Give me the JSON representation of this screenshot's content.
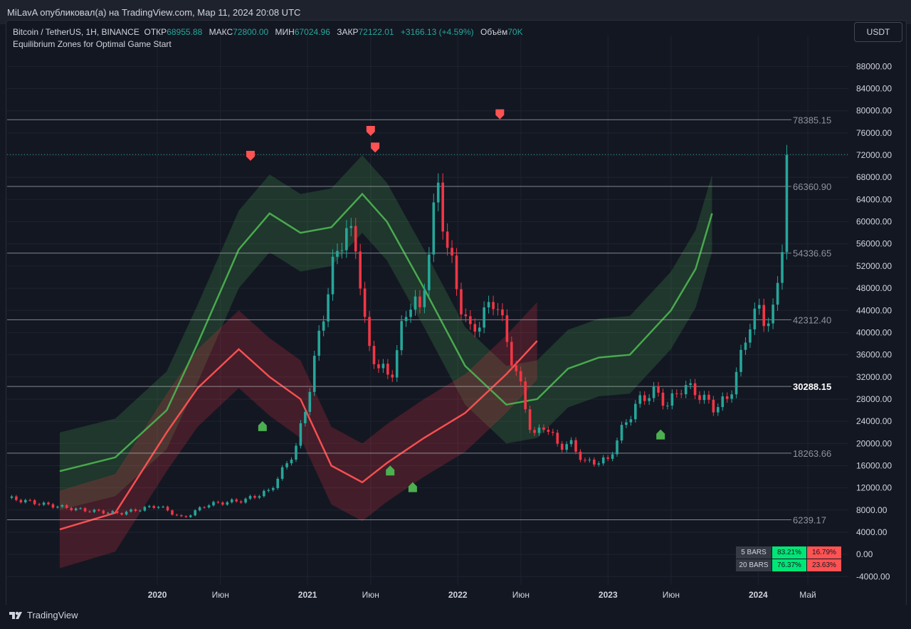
{
  "header": {
    "byline": "MiLavA опубликовал(а) на TradingView.com, Мар 11, 2024 20:08 UTC",
    "symbol": "Bitcoin / TetherUS, 1H, BINANCE",
    "open_label": "ОТКР",
    "open_value": "68955.88",
    "high_label": "МАКС",
    "high_value": "72800.00",
    "low_label": "МИН",
    "low_value": "67024.96",
    "close_label": "ЗАКР",
    "close_value": "72122.01",
    "change": "+3166.13 (+4.59%)",
    "volume_label": "Объём",
    "volume_value": "70K",
    "indicator": "Equilibrium Zones for Optimal Game Start"
  },
  "currency_button": "USDT",
  "footer": {
    "logo_text": "TradingView"
  },
  "stats": [
    {
      "label": "5 BARS",
      "up": "83.21%",
      "down": "16.79%"
    },
    {
      "label": "20 BARS",
      "up": "76.37%",
      "down": "23.63%"
    }
  ],
  "colors": {
    "bg": "#131722",
    "up": "#26a69a",
    "down": "#f23645",
    "green_line": "#4caf50",
    "red_line": "#ff5252",
    "grid": "#1f2330"
  },
  "chart_data": {
    "type": "candlestick",
    "title": "Bitcoin / TetherUS, 1H, BINANCE",
    "x_tick_labels": [
      "2020",
      "Июн",
      "2021",
      "Июн",
      "2022",
      "Июн",
      "2023",
      "Июн",
      "2024",
      "Май"
    ],
    "y_tick_labels": [
      "88000.00",
      "84000.00",
      "80000.00",
      "76000.00",
      "72000.00",
      "68000.00",
      "64000.00",
      "60000.00",
      "56000.00",
      "52000.00",
      "48000.00",
      "44000.00",
      "40000.00",
      "36000.00",
      "32000.00",
      "28000.00",
      "24000.00",
      "20000.00",
      "16000.00",
      "12000.00",
      "8000.00",
      "4000.00",
      "0.00",
      "-4000.00"
    ],
    "ylim": [
      -5500,
      91000
    ],
    "xlim": [
      2019.0,
      2024.6
    ],
    "horizontal_levels": [
      {
        "value": 78385.15,
        "label": "78385.15"
      },
      {
        "value": 66360.9,
        "label": "66360.90"
      },
      {
        "value": 54336.65,
        "label": "54336.65"
      },
      {
        "value": 42312.4,
        "label": "42312.40"
      },
      {
        "value": 30288.15,
        "label": "30288.15"
      },
      {
        "value": 18263.66,
        "label": "18263.66"
      },
      {
        "value": 6239.17,
        "label": "6239.17"
      }
    ],
    "current_price": 72122.01,
    "price_path": [
      [
        2019.0,
        10200
      ],
      [
        2019.25,
        9000
      ],
      [
        2019.5,
        8000
      ],
      [
        2019.75,
        7400
      ],
      [
        2020.0,
        8800
      ],
      [
        2020.17,
        6500
      ],
      [
        2020.33,
        9000
      ],
      [
        2020.58,
        9800
      ],
      [
        2020.75,
        11500
      ],
      [
        2020.92,
        19000
      ],
      [
        2021.0,
        28000
      ],
      [
        2021.08,
        40000
      ],
      [
        2021.17,
        52000
      ],
      [
        2021.25,
        59000
      ],
      [
        2021.33,
        55000
      ],
      [
        2021.4,
        37000
      ],
      [
        2021.48,
        34000
      ],
      [
        2021.55,
        31500
      ],
      [
        2021.63,
        41000
      ],
      [
        2021.7,
        47000
      ],
      [
        2021.75,
        43000
      ],
      [
        2021.83,
        60000
      ],
      [
        2021.87,
        66000
      ],
      [
        2021.92,
        57000
      ],
      [
        2022.0,
        47000
      ],
      [
        2022.08,
        40000
      ],
      [
        2022.17,
        43000
      ],
      [
        2022.25,
        46500
      ],
      [
        2022.33,
        38000
      ],
      [
        2022.42,
        30000
      ],
      [
        2022.5,
        21000
      ],
      [
        2022.58,
        23500
      ],
      [
        2022.67,
        19500
      ],
      [
        2022.75,
        20000
      ],
      [
        2022.85,
        16500
      ],
      [
        2023.0,
        17000
      ],
      [
        2023.1,
        23000
      ],
      [
        2023.2,
        27500
      ],
      [
        2023.3,
        29500
      ],
      [
        2023.4,
        27000
      ],
      [
        2023.5,
        30500
      ],
      [
        2023.6,
        29000
      ],
      [
        2023.7,
        26500
      ],
      [
        2023.8,
        28000
      ],
      [
        2023.88,
        35000
      ],
      [
        2023.95,
        42500
      ],
      [
        2024.0,
        44000
      ],
      [
        2024.05,
        42000
      ],
      [
        2024.1,
        43500
      ],
      [
        2024.15,
        52000
      ],
      [
        2024.19,
        72122
      ]
    ],
    "equilibrium_upper": [
      [
        2019.33,
        15000
      ],
      [
        2019.6,
        17500
      ],
      [
        2019.85,
        26000
      ],
      [
        2020.0,
        38000
      ],
      [
        2020.2,
        55000
      ],
      [
        2020.35,
        61500
      ],
      [
        2020.5,
        58000
      ],
      [
        2020.65,
        59000
      ],
      [
        2020.8,
        65000
      ],
      [
        2020.92,
        60000
      ],
      [
        2021.1,
        48000
      ],
      [
        2021.3,
        34000
      ],
      [
        2021.5,
        27000
      ],
      [
        2021.65,
        28000
      ],
      [
        2021.8,
        33500
      ],
      [
        2021.95,
        35500
      ],
      [
        2022.1,
        36000
      ],
      [
        2022.3,
        44000
      ],
      [
        2022.42,
        51500
      ],
      [
        2022.5,
        61500
      ]
    ],
    "equilibrium_lower": [
      [
        2019.33,
        4500
      ],
      [
        2019.6,
        7500
      ],
      [
        2019.85,
        22000
      ],
      [
        2020.0,
        30000
      ],
      [
        2020.2,
        37000
      ],
      [
        2020.35,
        32000
      ],
      [
        2020.5,
        28000
      ],
      [
        2020.65,
        16000
      ],
      [
        2020.8,
        13000
      ],
      [
        2020.92,
        16500
      ],
      [
        2021.1,
        21000
      ],
      [
        2021.3,
        25500
      ],
      [
        2021.5,
        32500
      ],
      [
        2021.65,
        38500
      ]
    ],
    "signals": {
      "sell": [
        [
          2020.62,
          72000
        ],
        [
          2021.42,
          76500
        ],
        [
          2021.45,
          73500
        ],
        [
          2022.28,
          79500
        ]
      ],
      "buy": [
        [
          2020.7,
          23000
        ],
        [
          2021.55,
          15000
        ],
        [
          2021.7,
          12000
        ],
        [
          2023.35,
          21500
        ]
      ]
    }
  }
}
